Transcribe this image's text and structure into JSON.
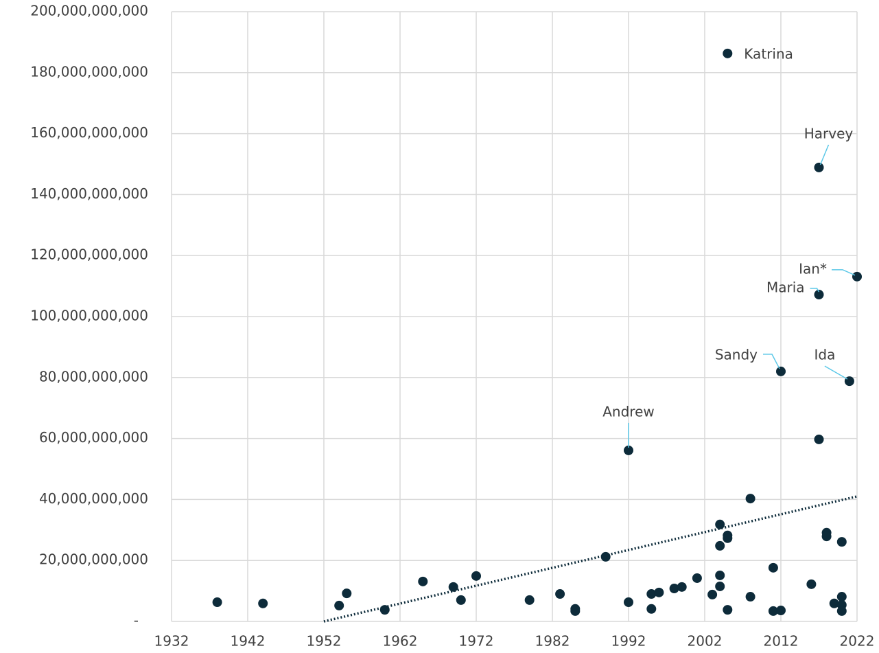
{
  "chart_data": {
    "type": "scatter",
    "xlim": [
      1932,
      2022
    ],
    "xticks": [
      1932,
      1942,
      1952,
      1962,
      1972,
      1982,
      1992,
      2002,
      2012,
      2022
    ],
    "ylim": [
      0,
      200000000000
    ],
    "yticks": [
      {
        "value": 0,
        "label": "-"
      },
      {
        "value": 20000000000,
        "label": "20,000,000,000"
      },
      {
        "value": 40000000000,
        "label": "40,000,000,000"
      },
      {
        "value": 60000000000,
        "label": "60,000,000,000"
      },
      {
        "value": 80000000000,
        "label": "80,000,000,000"
      },
      {
        "value": 100000000000,
        "label": "100,000,000,000"
      },
      {
        "value": 120000000000,
        "label": "120,000,000,000"
      },
      {
        "value": 140000000000,
        "label": "140,000,000,000"
      },
      {
        "value": 160000000000,
        "label": "160,000,000,000"
      },
      {
        "value": 180000000000,
        "label": "180,000,000,000"
      },
      {
        "value": 200000000000,
        "label": "200,000,000,000"
      }
    ],
    "grid": true,
    "series": [
      {
        "color": "#0d2b3a",
        "x": [
          1938,
          1944,
          1954,
          1955,
          1960,
          1965,
          1969,
          1970,
          1972,
          1979,
          1983,
          1985,
          1985,
          1989,
          1992,
          1992,
          1995,
          1995,
          1996,
          1998,
          1999,
          2001,
          2003,
          2004,
          2004,
          2004,
          2004,
          2005,
          2005,
          2005,
          2005,
          2008,
          2008,
          2011,
          2011,
          2012,
          2012,
          2016,
          2017,
          2017,
          2017,
          2018,
          2018,
          2019,
          2020,
          2020,
          2020,
          2020,
          2021,
          2022
        ],
        "values": [
          6300000000,
          5900000000,
          5200000000,
          9200000000,
          3800000000,
          13100000000,
          11300000000,
          7000000000,
          14900000000,
          7000000000,
          9000000000,
          4100000000,
          3400000000,
          21200000000,
          56100000000,
          6300000000,
          9000000000,
          4100000000,
          9500000000,
          10800000000,
          11300000000,
          14200000000,
          8800000000,
          31800000000,
          24800000000,
          15100000000,
          11500000000,
          28200000000,
          27300000000,
          186300000000,
          3800000000,
          40300000000,
          8100000000,
          17600000000,
          3400000000,
          82000000000,
          3600000000,
          12200000000,
          148900000000,
          107200000000,
          59700000000,
          29100000000,
          27900000000,
          5900000000,
          26100000000,
          8100000000,
          5400000000,
          3400000000,
          78800000000,
          113100000000
        ],
        "point_labels": [
          null,
          null,
          null,
          null,
          null,
          null,
          null,
          null,
          null,
          null,
          null,
          null,
          null,
          null,
          "Andrew",
          null,
          null,
          null,
          null,
          null,
          null,
          null,
          null,
          null,
          null,
          null,
          null,
          null,
          null,
          "Katrina",
          null,
          null,
          null,
          null,
          null,
          "Sandy",
          null,
          null,
          "Harvey",
          "Maria",
          null,
          null,
          null,
          null,
          null,
          null,
          null,
          null,
          "Ida",
          "Ian*"
        ]
      }
    ],
    "trendline": {
      "color": "#0d2b3a",
      "x": [
        1952,
        2022
      ],
      "values": [
        0,
        41000000000
      ]
    }
  }
}
